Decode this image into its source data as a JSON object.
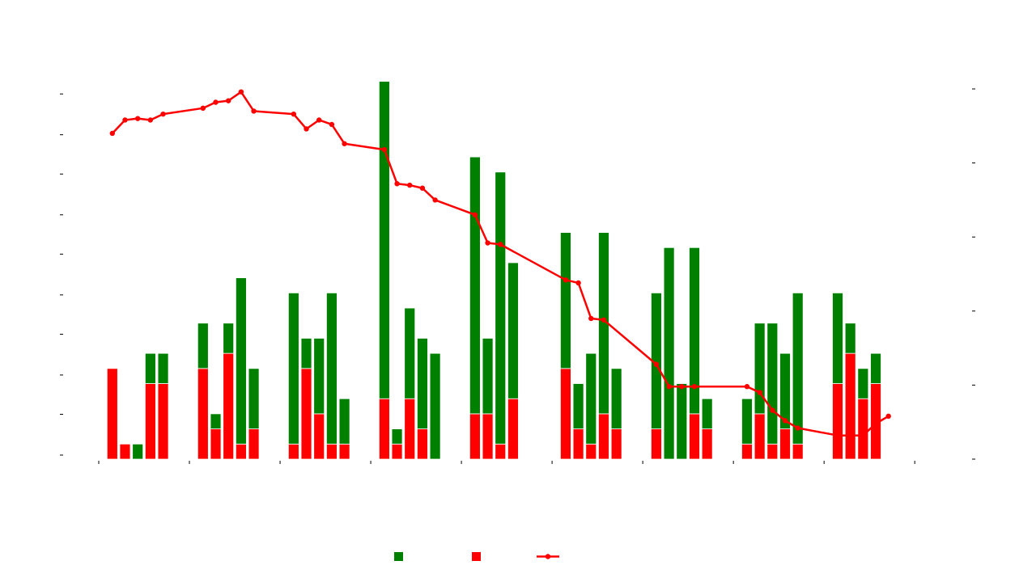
{
  "chart_data": {
    "type": "bar",
    "stacked": true,
    "title": "",
    "xlabel": "",
    "ylabel": "",
    "colors": {
      "green": "#008000",
      "red": "#ff0000",
      "line": "#ff0000"
    },
    "grid": false,
    "legend_position": "bottom-center",
    "left_axis": {
      "range": [
        0,
        24.5
      ],
      "major_ticks": [
        0,
        2.7,
        5.3,
        8,
        10.6,
        13.3,
        15.9,
        18.6,
        21.2,
        23.9
      ]
    },
    "right_axis": {
      "range": [
        0,
        25
      ],
      "major_ticks": [
        0,
        5,
        10,
        15,
        20,
        25
      ]
    },
    "x_axis": {
      "range": [
        0,
        9.4
      ],
      "major_ticks": [
        0,
        1,
        2,
        3,
        4,
        5,
        6,
        7,
        8,
        9
      ]
    },
    "bars": {
      "x": [
        0.15,
        0.29,
        0.43,
        0.57,
        0.71,
        1.15,
        1.29,
        1.43,
        1.57,
        1.71,
        2.15,
        2.29,
        2.43,
        2.57,
        2.71,
        3.15,
        3.29,
        3.43,
        3.57,
        3.71,
        4.15,
        4.29,
        4.43,
        4.57,
        5.15,
        5.29,
        5.43,
        5.57,
        5.71,
        6.15,
        6.29,
        6.43,
        6.57,
        6.71,
        7.15,
        7.29,
        7.43,
        7.57,
        7.71,
        8.15,
        8.29,
        8.43,
        8.57
      ],
      "series": [
        {
          "color": "red",
          "values": [
            6,
            1,
            0,
            5,
            5,
            6,
            2,
            7,
            1,
            2,
            1,
            6,
            3,
            1,
            1,
            4,
            1,
            4,
            2,
            0,
            3,
            3,
            1,
            4,
            6,
            2,
            1,
            3,
            2,
            2,
            0,
            0,
            3,
            2,
            1,
            3,
            1,
            2,
            1,
            5,
            7,
            4,
            5
          ]
        },
        {
          "color": "green",
          "values": [
            0,
            0,
            1,
            2,
            2,
            3,
            1,
            2,
            11,
            4,
            10,
            2,
            5,
            10,
            3,
            21,
            1,
            6,
            6,
            7,
            17,
            5,
            18,
            9,
            9,
            3,
            6,
            12,
            4,
            9,
            14,
            5,
            11,
            2,
            3,
            6,
            8,
            5,
            10,
            6,
            2,
            2,
            2
          ]
        }
      ]
    },
    "line": {
      "color": "red",
      "x": [
        0.15,
        0.29,
        0.43,
        0.57,
        0.71,
        1.15,
        1.29,
        1.43,
        1.57,
        1.71,
        2.15,
        2.29,
        2.43,
        2.57,
        2.71,
        3.15,
        3.29,
        3.43,
        3.57,
        3.71,
        4.15,
        4.29,
        4.43,
        5.15,
        5.29,
        5.43,
        5.57,
        6.15,
        6.29,
        6.43,
        6.57,
        7.15,
        7.29,
        7.43,
        7.57,
        7.71,
        8.15,
        8.29,
        8.43,
        8.57,
        8.71
      ],
      "values": [
        22.0,
        22.9,
        23.0,
        22.9,
        23.3,
        23.7,
        24.1,
        24.2,
        24.8,
        23.5,
        23.3,
        22.3,
        22.9,
        22.6,
        21.3,
        20.9,
        18.6,
        18.5,
        18.3,
        17.5,
        16.5,
        14.6,
        14.5,
        12.1,
        11.9,
        9.5,
        9.4,
        6.4,
        4.9,
        4.9,
        4.9,
        4.9,
        4.5,
        3.3,
        2.6,
        2.1,
        1.6,
        1.6,
        1.6,
        2.4,
        2.9
      ]
    },
    "legend": [
      "",
      "",
      ""
    ]
  }
}
